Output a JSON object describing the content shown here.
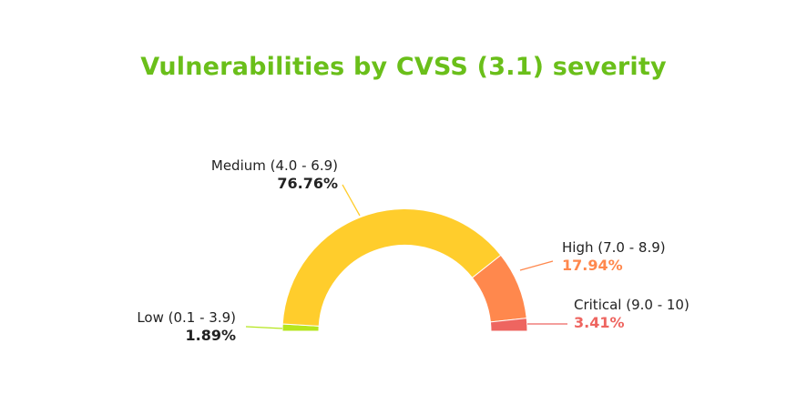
{
  "chart_data": {
    "type": "pie",
    "subtype": "half-donut",
    "title": "Vulnerabilities by CVSS (3.1) severity",
    "slices": [
      {
        "label": "Low (0.1 - 3.9)",
        "value": 1.89,
        "value_label": "1.89%",
        "color": "#b5e61d",
        "label_color": "#222222"
      },
      {
        "label": "Medium (4.0 - 6.9)",
        "value": 76.76,
        "value_label": "76.76%",
        "color": "#ffcd2c",
        "label_color": "#222222"
      },
      {
        "label": "High (7.0 - 8.9)",
        "value": 17.94,
        "value_label": "17.94%",
        "color": "#ff884d",
        "label_color": "#ff884d"
      },
      {
        "label": "Critical (9.0 - 10)",
        "value": 3.41,
        "value_label": "3.41%",
        "color": "#ee6560",
        "label_color": "#ee6560"
      }
    ],
    "title_color": "#6abf1a"
  }
}
